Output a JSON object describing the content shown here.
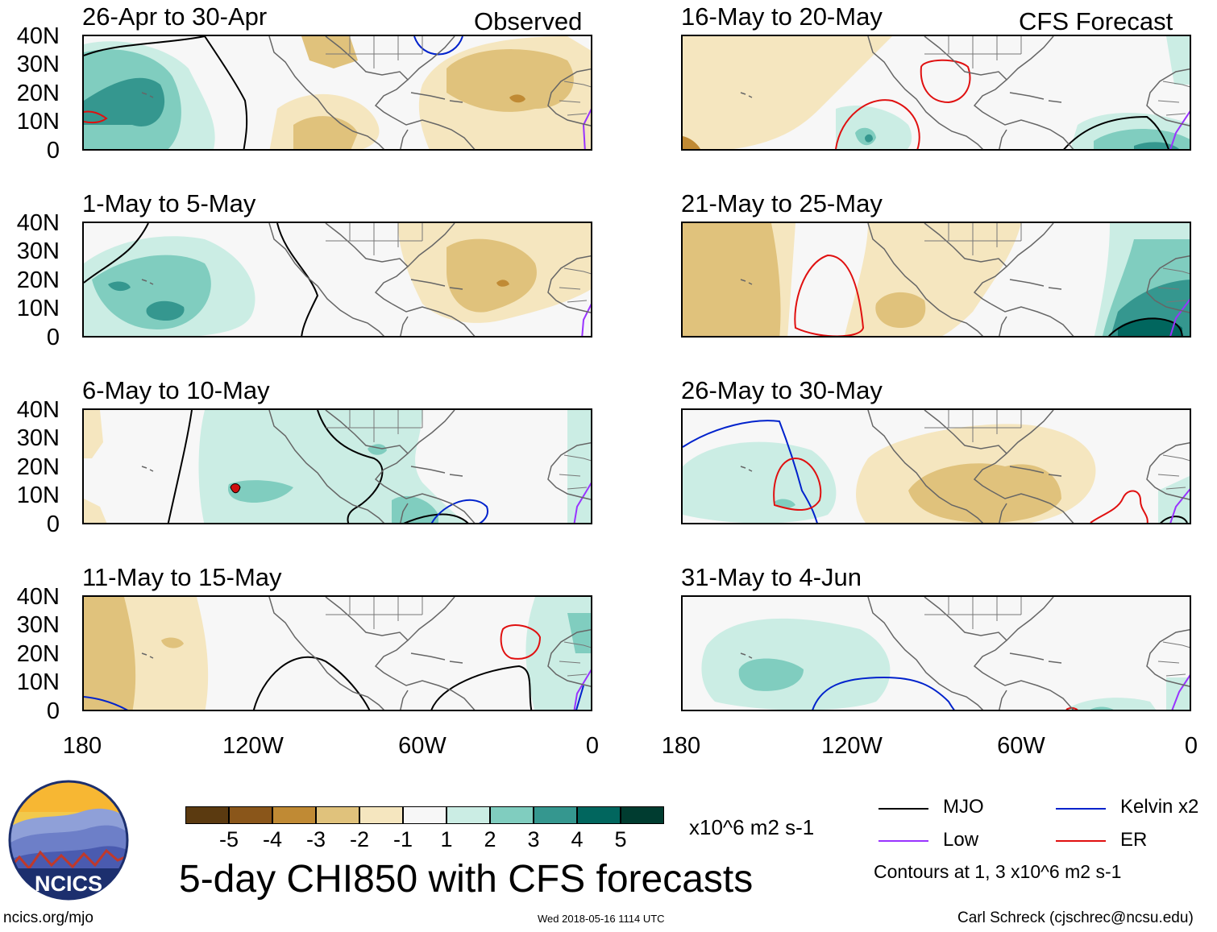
{
  "header": {
    "observed_label": "Observed",
    "forecast_label": "CFS Forecast"
  },
  "panels_left": [
    {
      "title": "26-Apr to 30-Apr"
    },
    {
      "title": "1-May to 5-May"
    },
    {
      "title": "6-May to 10-May"
    },
    {
      "title": "11-May to 15-May"
    }
  ],
  "panels_right": [
    {
      "title": "16-May to 20-May"
    },
    {
      "title": "21-May to 25-May"
    },
    {
      "title": "26-May to 30-May"
    },
    {
      "title": "31-May to 4-Jun"
    }
  ],
  "axes": {
    "lat_labels": [
      "40N",
      "30N",
      "20N",
      "10N",
      "0"
    ],
    "lon_labels": [
      "180",
      "120W",
      "60W",
      "0"
    ]
  },
  "colorbar": {
    "ticks": [
      "-5",
      "-4",
      "-3",
      "-2",
      "-1",
      "1",
      "2",
      "3",
      "4",
      "5"
    ],
    "units": "x10^6 m2 s-1",
    "colors": [
      "#5b3a10",
      "#8a561a",
      "#c08a34",
      "#e0c27c",
      "#f5e6bf",
      "#f7f7f7",
      "#cbede4",
      "#80cdbf",
      "#35978f",
      "#01665e",
      "#003c30"
    ]
  },
  "legend": {
    "items": [
      {
        "label": "MJO",
        "color": "#000000"
      },
      {
        "label": "Kelvin x2",
        "color": "#0022cc"
      },
      {
        "label": "Low",
        "color": "#9933ff"
      },
      {
        "label": "ER",
        "color": "#e01010"
      }
    ],
    "contours_note": "Contours at 1, 3 x10^6 m2 s-1"
  },
  "footer": {
    "main_title": "5-day CHI850 with CFS forecasts",
    "url": "ncics.org/mjo",
    "timestamp": "Wed 2018-05-16 1114 UTC",
    "author": "Carl Schreck (cjschrec@ncsu.edu)",
    "logo_text": "NCICS"
  }
}
